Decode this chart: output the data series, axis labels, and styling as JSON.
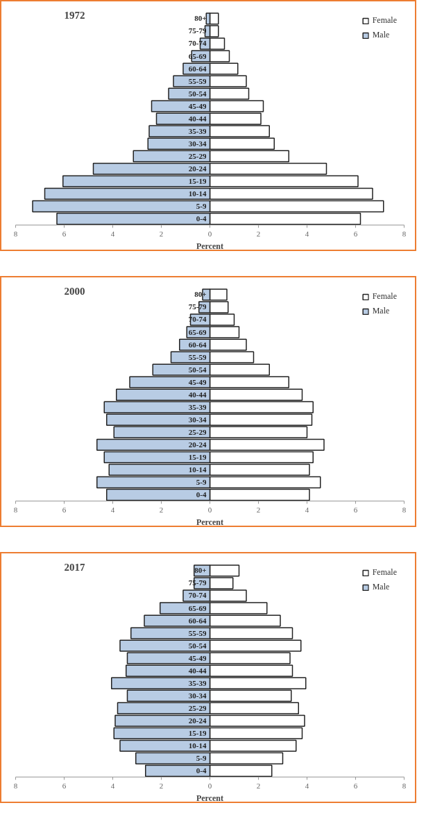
{
  "chart_data": [
    {
      "type": "bar",
      "orientation": "horizontal",
      "stacked": true,
      "title": "1972",
      "xlabel": "Percent",
      "categories": [
        "80+",
        "75-79",
        "70-74",
        "65-69",
        "60-64",
        "55-59",
        "50-54",
        "45-49",
        "40-44",
        "35-39",
        "30-34",
        "25-29",
        "20-24",
        "15-19",
        "10-14",
        "5-9",
        "0-4"
      ],
      "series": [
        {
          "name": "Female",
          "color": "#ffffff",
          "values": [
            0.35,
            0.35,
            0.6,
            0.8,
            1.15,
            1.5,
            1.6,
            2.2,
            2.1,
            2.45,
            2.65,
            3.25,
            4.8,
            6.1,
            6.7,
            7.15,
            6.2
          ]
        },
        {
          "name": "Male",
          "color": "#b8cce4",
          "values": [
            -0.15,
            -0.2,
            -0.4,
            -0.75,
            -1.1,
            -1.5,
            -1.7,
            -2.4,
            -2.2,
            -2.5,
            -2.55,
            -3.15,
            -4.8,
            -6.05,
            -6.8,
            -7.3,
            -6.3
          ]
        }
      ],
      "xlim": [
        -8,
        8
      ],
      "xticks": [
        {
          "value": -8,
          "label": "8"
        },
        {
          "value": -6,
          "label": "6"
        },
        {
          "value": -4,
          "label": "4"
        },
        {
          "value": -2,
          "label": "2"
        },
        0,
        2,
        4,
        6,
        8
      ],
      "legend": "top right",
      "grid": false
    },
    {
      "type": "bar",
      "orientation": "horizontal",
      "stacked": true,
      "title": "2000",
      "xlabel": "Percent",
      "categories": [
        "80+",
        "75-79",
        "70-74",
        "65-69",
        "60-64",
        "55-59",
        "50-54",
        "45-49",
        "40-44",
        "35-39",
        "30-34",
        "25-29",
        "20-24",
        "15-19",
        "10-14",
        "5-9",
        "0-4"
      ],
      "series": [
        {
          "name": "Female",
          "color": "#ffffff",
          "values": [
            0.7,
            0.75,
            1.0,
            1.2,
            1.5,
            1.8,
            2.45,
            3.25,
            3.8,
            4.25,
            4.2,
            4.0,
            4.7,
            4.25,
            4.1,
            4.55,
            4.1
          ]
        },
        {
          "name": "Male",
          "color": "#b8cce4",
          "values": [
            -0.3,
            -0.45,
            -0.8,
            -0.95,
            -1.25,
            -1.6,
            -2.35,
            -3.3,
            -3.85,
            -4.35,
            -4.25,
            -3.95,
            -4.65,
            -4.35,
            -4.15,
            -4.65,
            -4.25
          ]
        }
      ],
      "xlim": [
        -8,
        8
      ],
      "xticks": [
        {
          "value": -8,
          "label": "8"
        },
        {
          "value": -6,
          "label": "6"
        },
        {
          "value": -4,
          "label": "4"
        },
        {
          "value": -2,
          "label": "2"
        },
        0,
        2,
        4,
        6,
        8
      ],
      "legend": "top right",
      "grid": false
    },
    {
      "type": "bar",
      "orientation": "horizontal",
      "stacked": true,
      "title": "2017",
      "xlabel": "Percent",
      "categories": [
        "80+",
        "75-79",
        "70-74",
        "65-69",
        "60-64",
        "55-59",
        "50-54",
        "45-49",
        "40-44",
        "35-39",
        "30-34",
        "25-29",
        "20-24",
        "15-19",
        "10-14",
        "5-9",
        "0-4"
      ],
      "series": [
        {
          "name": "Female",
          "color": "#ffffff",
          "values": [
            1.2,
            0.95,
            1.5,
            2.35,
            2.9,
            3.4,
            3.75,
            3.3,
            3.4,
            3.95,
            3.35,
            3.65,
            3.9,
            3.8,
            3.55,
            3.0,
            2.55
          ]
        },
        {
          "name": "Male",
          "color": "#b8cce4",
          "values": [
            -0.65,
            -0.65,
            -1.1,
            -2.05,
            -2.7,
            -3.25,
            -3.7,
            -3.4,
            -3.45,
            -4.05,
            -3.4,
            -3.8,
            -3.9,
            -3.95,
            -3.7,
            -3.05,
            -2.65
          ]
        }
      ],
      "xlim": [
        -8,
        8
      ],
      "xticks": [
        {
          "value": -8,
          "label": "8"
        },
        {
          "value": -6,
          "label": "6"
        },
        {
          "value": -4,
          "label": "4"
        },
        {
          "value": -2,
          "label": "2"
        },
        0,
        2,
        4,
        6,
        8
      ],
      "legend": "top right",
      "grid": false
    }
  ]
}
